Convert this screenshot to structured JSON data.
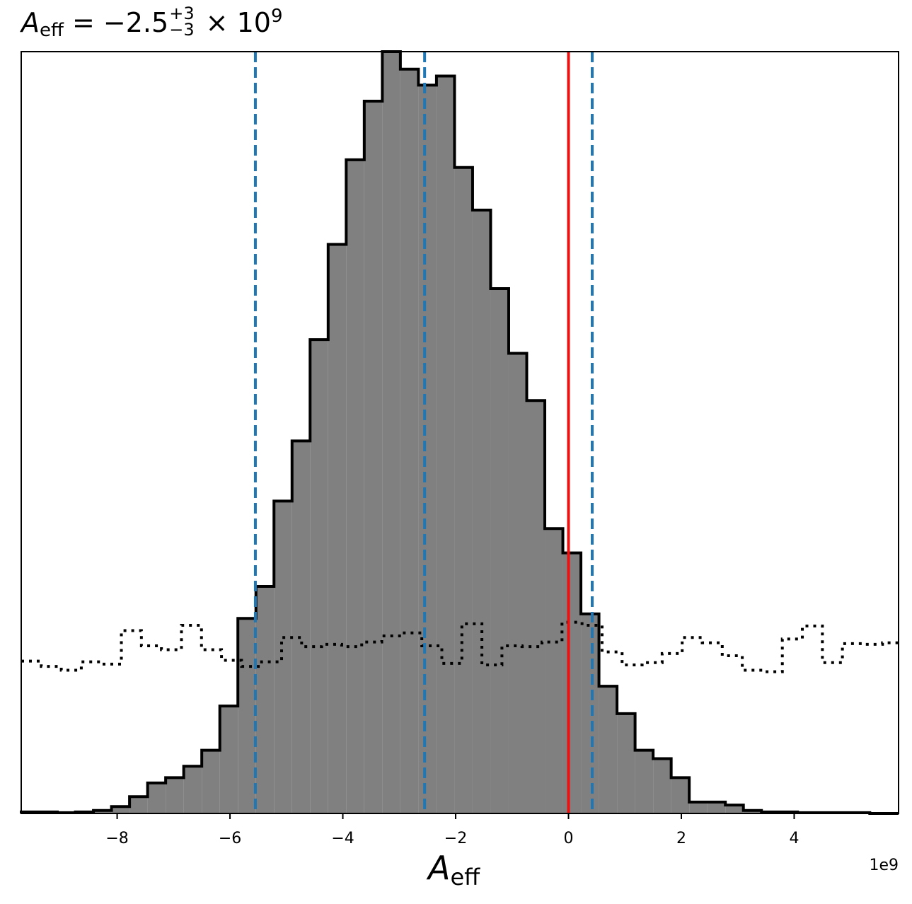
{
  "chart_data": {
    "type": "histogram",
    "title": {
      "symbol": "A",
      "subscript": "eff",
      "equals": " = −2.5",
      "upper_err": "+3",
      "lower_err": "−3",
      "exponent_prefix": " × 10",
      "exponent": "9"
    },
    "xlabel": {
      "symbol": "A",
      "subscript": "eff"
    },
    "x_offset_label": "1e9",
    "xlim": [
      -9.7,
      5.85
    ],
    "ylim": [
      0,
      1.0
    ],
    "x_ticks": [
      -8,
      -6,
      -4,
      -2,
      0,
      2,
      4
    ],
    "x_tick_labels": [
      "−8",
      "−6",
      "−4",
      "−2",
      "0",
      "2",
      "4"
    ],
    "y_ticks_shown": false,
    "bin_edges": [
      -9.7,
      -9.38,
      -9.06,
      -8.74,
      -8.42,
      -8.1,
      -7.78,
      -7.46,
      -7.14,
      -6.82,
      -6.5,
      -6.18,
      -5.86,
      -5.54,
      -5.22,
      -4.9,
      -4.58,
      -4.26,
      -3.94,
      -3.62,
      -3.3,
      -2.98,
      -2.66,
      -2.34,
      -2.02,
      -1.7,
      -1.38,
      -1.06,
      -0.74,
      -0.42,
      -0.1,
      0.22,
      0.54,
      0.86,
      1.18,
      1.5,
      1.82,
      2.14,
      2.46,
      2.78,
      3.1,
      3.42,
      3.74,
      4.06,
      4.38,
      4.7,
      5.02,
      5.34,
      5.66,
      5.85
    ],
    "posterior_counts": [
      0.002,
      0.002,
      0.001,
      0.002,
      0.004,
      0.009,
      0.022,
      0.04,
      0.047,
      0.062,
      0.083,
      0.141,
      0.256,
      0.298,
      0.41,
      0.489,
      0.622,
      0.747,
      0.858,
      0.935,
      1.007,
      0.977,
      0.956,
      0.968,
      0.848,
      0.792,
      0.689,
      0.604,
      0.542,
      0.374,
      0.342,
      0.262,
      0.167,
      0.131,
      0.083,
      0.072,
      0.047,
      0.015,
      0.015,
      0.011,
      0.004,
      0.002,
      0.002,
      0.001,
      0.001,
      0.001,
      0.001,
      0.0,
      0.0
    ],
    "prior_counts": [
      0.2,
      0.193,
      0.188,
      0.199,
      0.196,
      0.24,
      0.22,
      0.215,
      0.247,
      0.215,
      0.201,
      0.193,
      0.199,
      0.231,
      0.219,
      0.222,
      0.219,
      0.225,
      0.233,
      0.237,
      0.22,
      0.197,
      0.249,
      0.195,
      0.22,
      0.219,
      0.225,
      0.251,
      0.247,
      0.212,
      0.195,
      0.198,
      0.21,
      0.231,
      0.224,
      0.207,
      0.188,
      0.186,
      0.229,
      0.246,
      0.198,
      0.223,
      0.222,
      0.224
    ],
    "prior_bin_width": 0.355,
    "vlines": [
      {
        "x": -5.55,
        "style": "dashed",
        "color": "#1f77b4",
        "role": "lower bound"
      },
      {
        "x": -2.55,
        "style": "dashed",
        "color": "#1f77b4",
        "role": "median"
      },
      {
        "x": 0.42,
        "style": "dashed",
        "color": "#1f77b4",
        "role": "upper bound"
      },
      {
        "x": 0.0,
        "style": "solid",
        "color": "#ee1111",
        "role": "reference"
      }
    ],
    "fill_color": "#808080",
    "edge_color": "#000000",
    "grid": false
  }
}
